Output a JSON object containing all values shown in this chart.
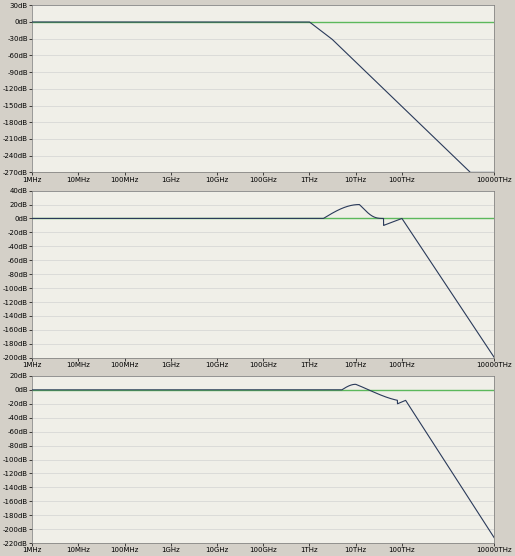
{
  "bg_color": "#d4d0c8",
  "plot_bg_color": "#f0efe8",
  "green_line_color": "#5cb85c",
  "blue_line_color": "#2a3a5a",
  "x_ticks_labels": [
    "1MHz",
    "10MHz",
    "100MHz",
    "1GHz",
    "10GHz",
    "100GHz",
    "1THz",
    "10THz",
    "100THz",
    "10000THz"
  ],
  "x_ticks_values": [
    1000000.0,
    10000000.0,
    100000000.0,
    1000000000.0,
    10000000000.0,
    100000000000.0,
    1000000000000.0,
    10000000000000.0,
    100000000000000.0,
    1e+16
  ],
  "plot1": {
    "ylim": [
      -270,
      30
    ],
    "yticks": [
      30,
      0,
      -30,
      -60,
      -90,
      -120,
      -150,
      -180,
      -210,
      -240,
      -270
    ],
    "ytick_labels": [
      "30dB",
      "0dB",
      "-30dB",
      "-60dB",
      "-90dB",
      "-120dB",
      "-150dB",
      "-180dB",
      "-210dB",
      "-240dB",
      "-270dB"
    ]
  },
  "plot2": {
    "ylim": [
      -200,
      40
    ],
    "yticks": [
      40,
      20,
      0,
      -20,
      -40,
      -60,
      -80,
      -100,
      -120,
      -140,
      -160,
      -180,
      -200
    ],
    "ytick_labels": [
      "40dB",
      "20dB",
      "0dB",
      "-20dB",
      "-40dB",
      "-60dB",
      "-80dB",
      "-100dB",
      "-120dB",
      "-140dB",
      "-160dB",
      "-180dB",
      "-200dB"
    ]
  },
  "plot3": {
    "ylim": [
      -220,
      20
    ],
    "yticks": [
      20,
      0,
      -20,
      -40,
      -60,
      -80,
      -100,
      -120,
      -140,
      -160,
      -180,
      -200,
      -220
    ],
    "ytick_labels": [
      "20dB",
      "0dB",
      "-20dB",
      "-40dB",
      "-60dB",
      "-80dB",
      "-100dB",
      "-120dB",
      "-140dB",
      "-160dB",
      "-180dB",
      "-200dB",
      "-220dB"
    ]
  }
}
